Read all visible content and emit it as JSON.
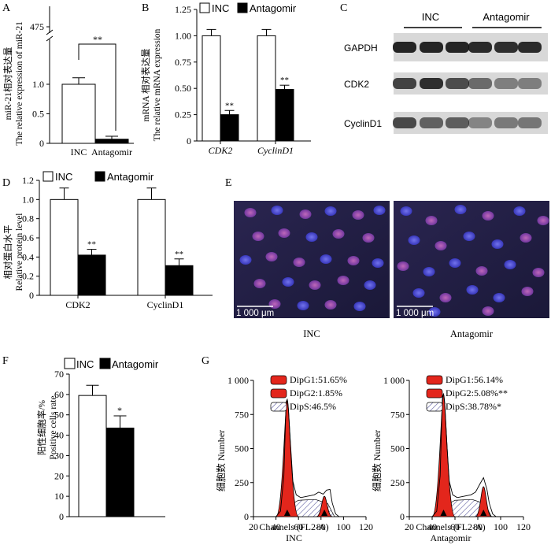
{
  "panels": {
    "A": {
      "letter": "A",
      "ylabel_cn": "miR-21相对表达量",
      "ylabel_en": "The relative expression of miR-21",
      "significance": "**",
      "chart_data": {
        "type": "bar",
        "categories": [
          "INC",
          "Antagomir"
        ],
        "values": [
          1.0,
          0.07
        ],
        "errors": [
          0.11,
          0.05
        ],
        "yticks": [
          "0",
          "0.5",
          "1.0",
          "475"
        ],
        "ylim": [
          0,
          1.6
        ],
        "axis_break": true,
        "break_label_value": 475,
        "colors": [
          "#ffffff",
          "#000000"
        ]
      }
    },
    "B": {
      "letter": "B",
      "ylabel_cn": "mRNA 相对表达量",
      "ylabel_en": "The relative mRNA expression",
      "legend": [
        "INC",
        "Antagomir"
      ],
      "significance": [
        "**",
        "**"
      ],
      "chart_data": {
        "type": "bar",
        "categories": [
          "CDK2",
          "CyclinD1"
        ],
        "series": [
          {
            "name": "INC",
            "values": [
              1.0,
              1.0
            ],
            "errors": [
              0.06,
              0.06
            ],
            "color": "#ffffff"
          },
          {
            "name": "Antagomir",
            "values": [
              0.25,
              0.49
            ],
            "errors": [
              0.04,
              0.04
            ],
            "color": "#000000"
          }
        ],
        "yticks": [
          "0",
          "0.25",
          "0.50",
          "0.75",
          "1.00",
          "1.25"
        ],
        "ylim": [
          0,
          1.25
        ]
      }
    },
    "C": {
      "letter": "C",
      "groups": [
        "INC",
        "Antagomir"
      ],
      "bands": [
        "GAPDH",
        "CDK2",
        "CyclinD1"
      ]
    },
    "D": {
      "letter": "D",
      "ylabel_cn": "相对蛋白水平",
      "ylabel_en": "Relative protein level",
      "legend": [
        "INC",
        "Antagomir"
      ],
      "significance": [
        "**",
        "**"
      ],
      "chart_data": {
        "type": "bar",
        "categories": [
          "CDK2",
          "CyclinD1"
        ],
        "series": [
          {
            "name": "INC",
            "values": [
              1.0,
              1.0
            ],
            "errors": [
              0.12,
              0.12
            ],
            "color": "#ffffff"
          },
          {
            "name": "Antagomir",
            "values": [
              0.42,
              0.31
            ],
            "errors": [
              0.06,
              0.07
            ],
            "color": "#000000"
          }
        ],
        "yticks": [
          "0",
          "0.2",
          "0.4",
          "0.6",
          "0.8",
          "1.0",
          "1.2"
        ],
        "ylim": [
          0,
          1.2
        ]
      }
    },
    "E": {
      "letter": "E",
      "scale_bar": "1 000 μm",
      "images": [
        "INC",
        "Antagomir"
      ]
    },
    "F": {
      "letter": "F",
      "ylabel_cn": "阳性细胞率/%",
      "ylabel_en": "Positive cells rate",
      "legend": [
        "INC",
        "Antagomir"
      ],
      "significance": "*",
      "chart_data": {
        "type": "bar",
        "categories": [
          "INC",
          "Antagomir"
        ],
        "values": [
          59.5,
          43.5
        ],
        "errors": [
          5.0,
          6.0
        ],
        "yticks": [
          "0",
          "10",
          "20",
          "30",
          "40",
          "50",
          "60",
          "70"
        ],
        "ylim": [
          0,
          70
        ],
        "colors": [
          "#ffffff",
          "#000000"
        ]
      }
    },
    "G": {
      "letter": "G",
      "ylabel": "细胞数 Number",
      "xlabel": "Channels (FL2-A)",
      "yticks": [
        "0",
        "250",
        "500",
        "750",
        "1 000"
      ],
      "xticks": [
        "20",
        "40",
        "60",
        "80",
        "100",
        "120"
      ],
      "chart_data": [
        {
          "type": "area",
          "name": "INC",
          "legend": [
            "DipG1:51.65%",
            "DipG2:1.85%",
            "DipS:46.5%"
          ],
          "xlim": [
            20,
            120
          ],
          "ylim": [
            0,
            1000
          ],
          "g1_peak": {
            "x": 50,
            "height": 860
          },
          "g2_peak": {
            "x": 83,
            "height": 150
          },
          "s_plateau": 120
        },
        {
          "type": "area",
          "name": "Antagomir",
          "legend": [
            "DipG1:56.14%",
            "DipG2:5.08%**",
            "DipS:38.78%*"
          ],
          "xlim": [
            20,
            120
          ],
          "ylim": [
            0,
            1000
          ],
          "g1_peak": {
            "x": 50,
            "height": 900
          },
          "g2_peak": {
            "x": 85,
            "height": 220
          },
          "s_plateau": 120
        }
      ]
    }
  }
}
